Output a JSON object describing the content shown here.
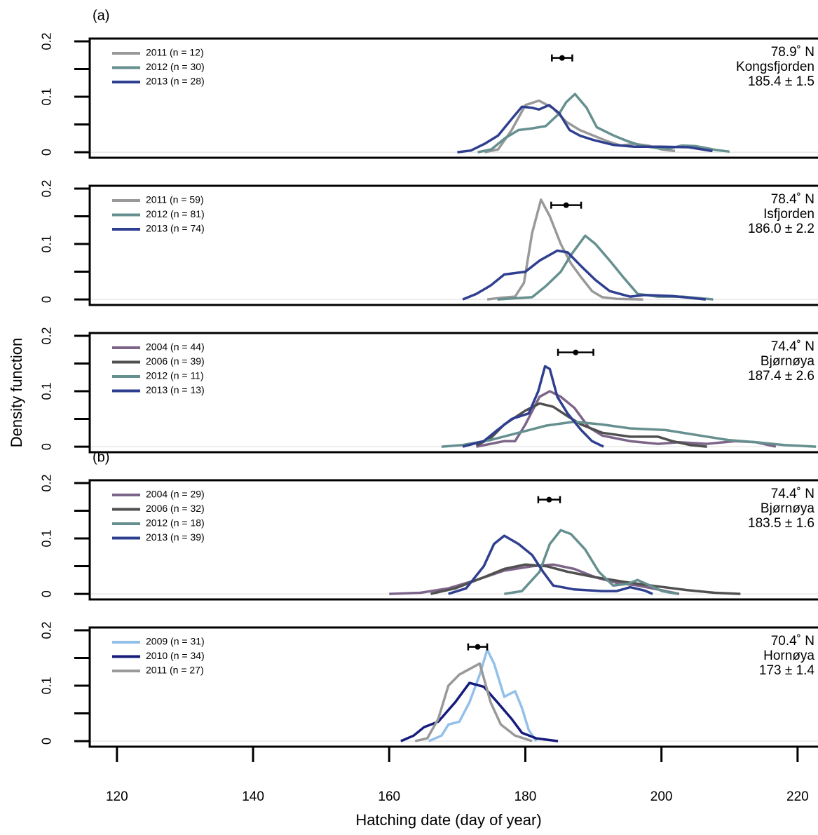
{
  "chart_data": [
    {
      "type": "line",
      "panel_label": "(a)",
      "xlim": [
        116,
        223
      ],
      "ylim": [
        -0.01,
        0.205
      ],
      "yticks": [
        0,
        0.1,
        0.2
      ],
      "yminor": [
        0.05,
        0.15
      ],
      "annotations": [
        "78.9˚ N",
        "Kongsfjorden",
        "185.4 ± 1.5"
      ],
      "mean": 185.4,
      "err": 1.5,
      "mean_y": 0.17,
      "series": [
        {
          "name": "2011 (n = 12)",
          "color": "#999999",
          "x": [
            174,
            176,
            178,
            180,
            182,
            184,
            186,
            188,
            190,
            192,
            194,
            196,
            198,
            200,
            202
          ],
          "values": [
            0,
            0.005,
            0.04,
            0.085,
            0.093,
            0.08,
            0.055,
            0.04,
            0.03,
            0.02,
            0.012,
            0.015,
            0.012,
            0.005,
            0.002
          ]
        },
        {
          "name": "2012 (n = 30)",
          "color": "#66908f",
          "x": [
            173,
            175,
            177,
            179,
            181,
            183,
            185,
            186,
            187.3,
            189,
            190.5,
            193,
            195,
            197,
            199,
            201,
            203,
            205,
            208,
            210
          ],
          "values": [
            0,
            0.005,
            0.025,
            0.04,
            0.043,
            0.047,
            0.07,
            0.09,
            0.105,
            0.08,
            0.045,
            0.03,
            0.02,
            0.012,
            0.008,
            0.006,
            0.012,
            0.011,
            0.004,
            0.001
          ]
        },
        {
          "name": "2013 (n = 28)",
          "color": "#2f3f8f",
          "x": [
            170,
            172,
            174,
            176,
            178,
            179.5,
            181,
            182,
            183.5,
            185,
            186.5,
            188,
            190,
            193,
            196,
            200,
            204,
            207.5
          ],
          "values": [
            0,
            0.003,
            0.015,
            0.03,
            0.06,
            0.082,
            0.08,
            0.077,
            0.085,
            0.07,
            0.04,
            0.03,
            0.022,
            0.013,
            0.01,
            0.01,
            0.009,
            0.002
          ]
        }
      ]
    },
    {
      "type": "line",
      "xlim": [
        116,
        223
      ],
      "ylim": [
        -0.01,
        0.205
      ],
      "yticks": [
        0,
        0.1,
        0.2
      ],
      "yminor": [
        0.05,
        0.15
      ],
      "annotations": [
        "78.4˚ N",
        "Isfjorden",
        "186.0 ± 2.2"
      ],
      "mean": 186.0,
      "err": 2.2,
      "mean_y": 0.17,
      "series": [
        {
          "name": "2011 (n = 59)",
          "color": "#999999",
          "x": [
            174.4,
            176.4,
            178.5,
            179.8,
            181,
            182.3,
            183.6,
            185.2,
            186.7,
            188.2,
            189.8,
            191.3,
            193.4,
            197.3
          ],
          "values": [
            0,
            0.003,
            0.005,
            0.03,
            0.12,
            0.18,
            0.15,
            0.1,
            0.065,
            0.04,
            0.015,
            0.004,
            0.001,
            0
          ]
        },
        {
          "name": "2012 (n = 81)",
          "color": "#66908f",
          "x": [
            175.9,
            181,
            183.1,
            185.2,
            186.7,
            188.8,
            190.3,
            192.4,
            194.4,
            196.5,
            199.5,
            203.1,
            207.6
          ],
          "values": [
            0,
            0.004,
            0.025,
            0.05,
            0.08,
            0.115,
            0.1,
            0.07,
            0.04,
            0.01,
            0.005,
            0.005,
            0
          ]
        },
        {
          "name": "2013 (n = 74)",
          "color": "#2f3f8f",
          "x": [
            170.8,
            172.8,
            174.9,
            176.9,
            180,
            182.1,
            184.7,
            186.2,
            188.2,
            190.3,
            192.4,
            195.4,
            197.5,
            201.6,
            206.5
          ],
          "values": [
            0,
            0.01,
            0.025,
            0.045,
            0.05,
            0.07,
            0.088,
            0.085,
            0.06,
            0.035,
            0.015,
            0.005,
            0.008,
            0.006,
            0
          ]
        }
      ]
    },
    {
      "type": "line",
      "ylabel": "Density function",
      "xlim": [
        116,
        223
      ],
      "ylim": [
        -0.01,
        0.205
      ],
      "yticks": [
        0,
        0.1,
        0.2
      ],
      "yminor": [
        0.05,
        0.15
      ],
      "annotations": [
        "74.4˚ N",
        "Bjørnøya",
        "187.4 ± 2.6"
      ],
      "mean": 187.4,
      "err": 2.6,
      "mean_y": 0.17,
      "series": [
        {
          "name": "2004 (n = 44)",
          "color": "#7d6489",
          "x": [
            172.8,
            174.9,
            176.9,
            178.5,
            180,
            182.1,
            183.6,
            185.2,
            187.2,
            189.3,
            191.3,
            195.4,
            199.5,
            202.6,
            206.7,
            210.8,
            213.9,
            216.8
          ],
          "values": [
            0,
            0.005,
            0.01,
            0.01,
            0.04,
            0.09,
            0.1,
            0.09,
            0.07,
            0.035,
            0.02,
            0.01,
            0.005,
            0.008,
            0.005,
            0.01,
            0.008,
            0
          ]
        },
        {
          "name": "2006 (n = 39)",
          "color": "#505050",
          "x": [
            172.8,
            174.9,
            176.9,
            180,
            182.1,
            184.1,
            186.2,
            188.2,
            191.3,
            195.4,
            199.5,
            201.6,
            204.2,
            206.7
          ],
          "values": [
            0.002,
            0.015,
            0.04,
            0.065,
            0.078,
            0.072,
            0.055,
            0.04,
            0.025,
            0.018,
            0.018,
            0.01,
            0.003,
            0
          ]
        },
        {
          "name": "2012 (n = 11)",
          "color": "#66908f",
          "x": [
            167.7,
            170.8,
            174.9,
            179,
            183.1,
            187.2,
            191.3,
            195.4,
            200.6,
            205.7,
            209.8,
            213.9,
            218,
            222.7
          ],
          "values": [
            0,
            0.003,
            0.012,
            0.025,
            0.038,
            0.045,
            0.04,
            0.033,
            0.03,
            0.02,
            0.012,
            0.008,
            0.003,
            0
          ]
        },
        {
          "name": "2013 (n = 13)",
          "color": "#2f3f8f",
          "x": [
            170.8,
            173.9,
            175.9,
            178,
            180.5,
            181.9,
            182.9,
            183.6,
            184.7,
            186.2,
            188.2,
            189.8,
            191.5
          ],
          "values": [
            0,
            0.01,
            0.03,
            0.05,
            0.06,
            0.1,
            0.145,
            0.14,
            0.09,
            0.06,
            0.03,
            0.01,
            0
          ]
        }
      ]
    },
    {
      "type": "line",
      "panel_label": "(b)",
      "xlim": [
        116,
        223
      ],
      "ylim": [
        -0.01,
        0.205
      ],
      "yticks": [
        0,
        0.1,
        0.2
      ],
      "yminor": [
        0.05,
        0.15
      ],
      "annotations": [
        "74.4˚ N",
        "Bjørnøya",
        "183.5 ± 1.6"
      ],
      "mean": 183.5,
      "err": 1.6,
      "mean_y": 0.17,
      "series": [
        {
          "name": "2004 (n = 29)",
          "color": "#7d6489",
          "x": [
            160,
            164.6,
            168.7,
            172.8,
            176.9,
            181,
            184.1,
            187.2,
            190.3,
            193.4,
            196.5,
            199.5,
            202.6
          ],
          "values": [
            0,
            0.002,
            0.01,
            0.025,
            0.042,
            0.05,
            0.053,
            0.045,
            0.03,
            0.02,
            0.015,
            0.008,
            0
          ]
        },
        {
          "name": "2006 (n = 32)",
          "color": "#505050",
          "x": [
            166.1,
            169.7,
            173.9,
            176.9,
            180,
            183.1,
            186.2,
            190.3,
            194.4,
            198.5,
            203.7,
            207.8,
            211.6
          ],
          "values": [
            0,
            0.01,
            0.03,
            0.045,
            0.053,
            0.05,
            0.04,
            0.03,
            0.022,
            0.015,
            0.007,
            0.002,
            0
          ]
        },
        {
          "name": "2012 (n = 18)",
          "color": "#66908f",
          "x": [
            176.9,
            179.5,
            182.1,
            183.6,
            185.2,
            186.7,
            188.8,
            190.8,
            192.9,
            195,
            196.5,
            198,
            200.1,
            202.4
          ],
          "values": [
            0,
            0.005,
            0.04,
            0.09,
            0.115,
            0.108,
            0.08,
            0.04,
            0.015,
            0.018,
            0.025,
            0.017,
            0.005,
            0
          ]
        },
        {
          "name": "2013 (n = 39)",
          "color": "#2f3f8f",
          "x": [
            168.7,
            171.3,
            173.9,
            175.4,
            176.9,
            179,
            181,
            182.6,
            184.1,
            187.2,
            191.3,
            193.4,
            195.4,
            197.5,
            198.7
          ],
          "values": [
            0,
            0.01,
            0.05,
            0.09,
            0.105,
            0.09,
            0.07,
            0.04,
            0.015,
            0.008,
            0.005,
            0.005,
            0.012,
            0.006,
            0
          ]
        }
      ]
    },
    {
      "type": "line",
      "xlabel": "Hatching date (day of year)",
      "xlim": [
        116,
        223
      ],
      "ylim": [
        -0.01,
        0.205
      ],
      "yticks": [
        0,
        0.1,
        0.2
      ],
      "yminor": [
        0.05,
        0.15
      ],
      "xticks": [
        120,
        140,
        160,
        180,
        200,
        220
      ],
      "annotations": [
        "70.4˚ N",
        "Hornøya",
        "173 ± 1.4"
      ],
      "mean": 173,
      "err": 1.4,
      "mean_y": 0.17,
      "series": [
        {
          "name": "2009 (n = 31)",
          "color": "#93c0ea",
          "x": [
            165.8,
            167.7,
            168.7,
            170.3,
            171.8,
            173.3,
            174.4,
            175.4,
            176.9,
            178.5,
            179.5,
            180.5,
            181.6
          ],
          "values": [
            0,
            0.01,
            0.03,
            0.035,
            0.07,
            0.12,
            0.165,
            0.14,
            0.08,
            0.09,
            0.06,
            0.02,
            0
          ]
        },
        {
          "name": "2010 (n = 34)",
          "color": "#161c7c",
          "x": [
            161.7,
            163.6,
            165.1,
            167.2,
            169.7,
            171.8,
            173.9,
            175.9,
            178,
            179.5,
            181.6,
            184.8
          ],
          "values": [
            0,
            0.01,
            0.025,
            0.035,
            0.07,
            0.105,
            0.098,
            0.07,
            0.04,
            0.015,
            0.005,
            0
          ]
        },
        {
          "name": "2011 (n = 27)",
          "color": "#999999",
          "x": [
            163.8,
            165.6,
            167.2,
            168.7,
            170.3,
            171.8,
            173.3,
            174.9,
            176.4,
            178.5,
            181
          ],
          "values": [
            0,
            0.005,
            0.04,
            0.1,
            0.12,
            0.13,
            0.14,
            0.07,
            0.03,
            0.01,
            0
          ]
        }
      ]
    }
  ]
}
